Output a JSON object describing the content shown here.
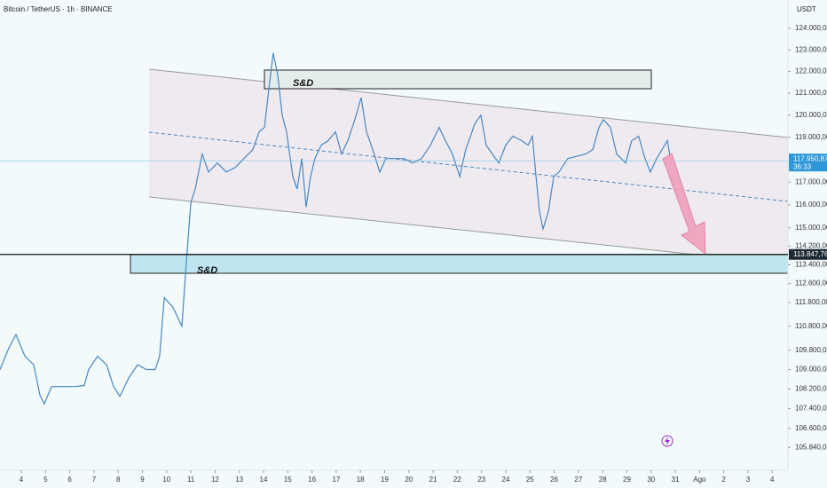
{
  "chart_data": {
    "type": "line",
    "title": "Bitcoin / TetherUS · 1h · BINANCE",
    "currency": "USDT",
    "color": "#4a86c0",
    "log_scale": true,
    "grid": false,
    "annotations": [
      "S&D",
      "S&D"
    ],
    "countdown": "36:33",
    "price_labels": [
      {
        "value": 117950.87,
        "label": "117.950,87"
      },
      {
        "value": 113847.76,
        "label": "113.847,76"
      }
    ],
    "x": [
      3.12,
      3.49,
      3.78,
      4.15,
      4.51,
      4.77,
      4.95,
      5.25,
      5.68,
      6.23,
      6.6,
      6.78,
      7.15,
      7.52,
      7.81,
      8.07,
      8.43,
      8.8,
      9.16,
      9.53,
      9.71,
      9.9,
      10.26,
      10.63,
      10.81,
      11.0,
      11.18,
      11.47,
      11.73,
      12.1,
      12.46,
      12.83,
      13.19,
      13.56,
      13.82,
      14.04,
      14.22,
      14.4,
      14.59,
      14.77,
      14.95,
      15.21,
      15.39,
      15.58,
      15.76,
      15.94,
      16.12,
      16.38,
      16.67,
      16.97,
      17.22,
      17.48,
      17.77,
      18.03,
      18.25,
      18.51,
      18.8,
      19.05,
      19.42,
      19.79,
      20.15,
      20.52,
      20.89,
      21.25,
      21.51,
      21.8,
      22.1,
      22.35,
      22.72,
      22.97,
      23.19,
      23.45,
      23.71,
      24.0,
      24.29,
      24.66,
      24.92,
      25.1,
      25.25,
      25.39,
      25.54,
      25.76,
      25.98,
      26.2,
      26.56,
      26.93,
      27.3,
      27.59,
      27.85,
      28.03,
      28.32,
      28.58,
      28.95,
      29.2,
      29.49,
      29.75,
      29.97,
      30.23,
      30.45,
      30.67,
      30.78
    ],
    "values": [
      109000,
      109900,
      110450,
      109550,
      109200,
      107950,
      107600,
      108300,
      108300,
      108300,
      108350,
      109000,
      109550,
      109200,
      108300,
      107900,
      108650,
      109200,
      109000,
      109000,
      109550,
      112000,
      111600,
      110800,
      113450,
      116100,
      116700,
      118250,
      117450,
      117850,
      117450,
      117650,
      118050,
      118450,
      119250,
      119450,
      121200,
      122850,
      121800,
      120000,
      119250,
      117250,
      116700,
      118050,
      115900,
      117250,
      118050,
      118650,
      118850,
      119250,
      118250,
      118850,
      119800,
      120800,
      119250,
      118450,
      117450,
      118050,
      118050,
      118050,
      117850,
      118050,
      118650,
      119450,
      118850,
      118250,
      117250,
      118450,
      119600,
      120000,
      118650,
      118250,
      117850,
      118650,
      119050,
      118850,
      118650,
      119050,
      117250,
      115700,
      114950,
      115700,
      117250,
      117450,
      118050,
      118150,
      118250,
      118450,
      119450,
      119800,
      119450,
      118250,
      117850,
      118850,
      119050,
      118050,
      117450,
      118050,
      118450,
      118850,
      118150
    ],
    "xlim": [
      3.12,
      35.65
    ],
    "xticks": [
      4,
      5,
      6,
      7,
      8,
      9,
      10,
      11,
      12,
      13,
      14,
      15,
      16,
      17,
      18,
      19,
      20,
      21,
      22,
      23,
      24,
      25,
      26,
      27,
      28,
      29,
      30,
      31,
      {
        "value": 32,
        "label": "Ago"
      },
      {
        "value": 33,
        "label": "2"
      },
      {
        "value": 34,
        "label": "3"
      },
      {
        "value": 35,
        "label": "4"
      }
    ],
    "ylim": [
      105000,
      125340
    ],
    "yticks": [
      {
        "value": 124000,
        "label": "124.000,00"
      },
      {
        "value": 123000,
        "label": "123.000,00"
      },
      {
        "value": 122000,
        "label": "122.000,00"
      },
      {
        "value": 121000,
        "label": "121.000,00"
      },
      {
        "value": 120000,
        "label": "120.000,00"
      },
      {
        "value": 119000,
        "label": "119.000,00"
      },
      {
        "value": 117000,
        "label": "117.000,00"
      },
      {
        "value": 116000,
        "label": "116.000,00"
      },
      {
        "value": 115000,
        "label": "115.000,00"
      },
      {
        "value": 114200,
        "label": "114.200,00"
      },
      {
        "value": 113400,
        "label": "113.400,00"
      },
      {
        "value": 112600,
        "label": "112.600,00"
      },
      {
        "value": 111800,
        "label": "111.800,00"
      },
      {
        "value": 110800,
        "label": "110.800,00"
      },
      {
        "value": 109800,
        "label": "109.800,00"
      },
      {
        "value": 109000,
        "label": "109.000,00"
      },
      {
        "value": 108200,
        "label": "108.200,00"
      },
      {
        "value": 107400,
        "label": "107.400,00"
      },
      {
        "value": 106600,
        "label": "106.600,00"
      },
      {
        "value": 105840,
        "label": "105.840,00"
      }
    ]
  }
}
